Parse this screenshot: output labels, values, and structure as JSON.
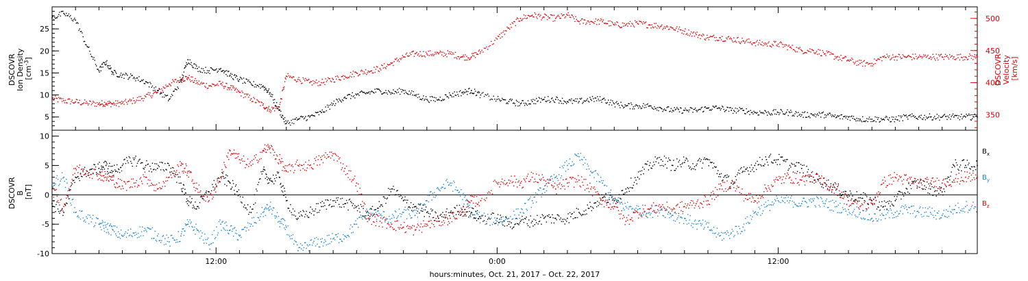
{
  "figure": {
    "xlabel": "hours:minutes, Oct. 21, 2017 – Oct. 22, 2017",
    "x_tick_labels": [
      "12:00",
      "0:00",
      "12:00"
    ],
    "colors": {
      "black": "#000000",
      "red": "#e00000",
      "blue": "#1a86d6"
    }
  },
  "chart_data": [
    {
      "type": "scatter",
      "panel": "top",
      "x_unit": "hours since 2017-10-21 00:00",
      "xlim": [
        5.0,
        44.5
      ],
      "left_axis": {
        "label_lines": [
          "DSCOVR",
          "Ion Density",
          "[cm^-3]"
        ],
        "label_sup": "-3",
        "ylim": [
          2,
          30
        ],
        "ticks": [
          5,
          10,
          15,
          20,
          25
        ]
      },
      "right_axis": {
        "label_lines": [
          "DSCOVR",
          "Velocity",
          "[km/s]"
        ],
        "ylim": [
          326,
          518
        ],
        "ticks": [
          350,
          400,
          450,
          500
        ],
        "color": "#e00000"
      },
      "series": [
        {
          "axis": "left",
          "color": "#000000",
          "x": [
            5.0,
            5.5,
            6.0,
            6.5,
            7.0,
            7.3,
            7.6,
            8.0,
            8.5,
            9.0,
            9.5,
            10.0,
            10.5,
            10.8,
            11.2,
            11.7,
            12.2,
            12.6,
            13.0,
            13.5,
            14.0,
            14.3,
            14.7,
            15.0,
            15.5,
            16.0,
            16.5,
            17.0,
            17.5,
            18.0,
            18.5,
            19.0,
            19.5,
            20.0,
            20.5,
            21.0,
            21.5,
            22.0,
            22.5,
            22.9,
            23.3,
            24.0,
            24.5,
            25.0,
            25.5,
            26.0,
            26.5,
            27.0,
            27.5,
            28.0,
            28.5,
            29.0,
            29.5,
            30.0,
            30.5,
            31.0,
            31.5,
            32.0,
            32.5,
            33.0,
            33.5,
            34.0,
            34.5,
            35.0,
            35.5,
            36.0,
            36.5,
            37.0,
            37.5,
            38.0,
            38.5,
            39.0,
            39.5,
            40.0,
            40.5,
            41.0,
            41.5,
            42.0,
            42.5,
            43.0,
            43.5,
            44.0,
            44.5
          ],
          "y": [
            27.5,
            28.5,
            27.0,
            21.0,
            15.5,
            17.5,
            15.0,
            14.5,
            14.0,
            13.0,
            11.0,
            9.0,
            13.0,
            18.0,
            16.0,
            15.5,
            16.0,
            14.5,
            13.5,
            12.5,
            12.0,
            10.5,
            6.5,
            3.5,
            4.5,
            5.0,
            6.0,
            8.0,
            9.5,
            10.0,
            10.5,
            11.0,
            10.5,
            11.0,
            10.0,
            9.0,
            9.0,
            10.0,
            10.5,
            11.0,
            10.0,
            9.0,
            8.5,
            8.0,
            8.5,
            9.0,
            9.0,
            8.5,
            8.5,
            9.0,
            9.0,
            8.0,
            7.5,
            7.5,
            7.5,
            7.0,
            6.5,
            6.5,
            6.5,
            7.0,
            7.0,
            6.5,
            6.5,
            6.0,
            6.0,
            6.0,
            6.0,
            5.5,
            5.5,
            5.5,
            5.0,
            5.0,
            4.5,
            4.5,
            4.5,
            4.5,
            5.0,
            5.0,
            5.0,
            5.0,
            5.0,
            5.0,
            5.0
          ]
        },
        {
          "axis": "right",
          "color": "#e00000",
          "x": [
            5.0,
            5.5,
            6.0,
            6.5,
            7.0,
            7.3,
            7.6,
            8.0,
            8.5,
            9.0,
            9.5,
            10.0,
            10.5,
            10.8,
            11.2,
            11.7,
            12.2,
            12.6,
            13.0,
            13.5,
            14.0,
            14.3,
            14.7,
            15.0,
            15.5,
            16.0,
            16.5,
            17.0,
            17.5,
            18.0,
            18.5,
            19.0,
            19.5,
            20.0,
            20.5,
            21.0,
            21.5,
            22.0,
            22.5,
            22.9,
            23.3,
            24.0,
            24.5,
            25.0,
            25.5,
            26.0,
            26.5,
            27.0,
            27.5,
            28.0,
            28.5,
            29.0,
            29.5,
            30.0,
            30.5,
            31.0,
            31.5,
            32.0,
            32.5,
            33.0,
            33.5,
            34.0,
            34.5,
            35.0,
            35.5,
            36.0,
            36.5,
            37.0,
            37.5,
            38.0,
            38.5,
            39.0,
            39.5,
            40.0,
            40.5,
            41.0,
            41.5,
            42.0,
            42.5,
            43.0,
            43.5,
            44.0,
            44.5
          ],
          "y": [
            375,
            372,
            370,
            368,
            367,
            368,
            367,
            368,
            372,
            378,
            385,
            398,
            405,
            408,
            400,
            395,
            398,
            392,
            385,
            375,
            365,
            358,
            362,
            410,
            405,
            400,
            400,
            405,
            410,
            415,
            418,
            422,
            430,
            440,
            445,
            445,
            445,
            445,
            440,
            440,
            448,
            468,
            485,
            500,
            505,
            502,
            500,
            505,
            495,
            495,
            495,
            490,
            490,
            492,
            490,
            488,
            485,
            480,
            475,
            470,
            470,
            468,
            465,
            462,
            460,
            460,
            455,
            450,
            450,
            445,
            440,
            435,
            430,
            430,
            440,
            440,
            440,
            440,
            440,
            440,
            440,
            440,
            440
          ]
        }
      ]
    },
    {
      "type": "scatter",
      "panel": "bottom",
      "x_unit": "hours since 2017-10-21 00:00",
      "xlim": [
        5.0,
        44.5
      ],
      "left_axis": {
        "label_lines": [
          "DSCOVR",
          "B",
          "[nT]"
        ],
        "ylim": [
          -10,
          11
        ],
        "ticks": [
          -10,
          -5,
          0,
          5,
          10
        ]
      },
      "zero_line": true,
      "series": [
        {
          "name": "B_x",
          "color": "#000000",
          "x": [
            5.0,
            5.5,
            6.0,
            6.5,
            7.0,
            7.3,
            7.6,
            8.0,
            8.5,
            9.0,
            9.5,
            10.0,
            10.5,
            10.8,
            11.2,
            11.7,
            12.2,
            12.6,
            13.0,
            13.5,
            14.0,
            14.3,
            14.7,
            15.0,
            15.5,
            16.0,
            16.5,
            17.0,
            17.5,
            18.0,
            18.5,
            19.0,
            19.5,
            20.0,
            20.5,
            21.0,
            21.5,
            22.0,
            22.5,
            22.9,
            23.3,
            24.0,
            24.5,
            25.0,
            25.5,
            26.0,
            26.5,
            27.0,
            27.5,
            28.0,
            28.5,
            29.0,
            29.5,
            30.0,
            30.5,
            31.0,
            31.5,
            32.0,
            32.5,
            33.0,
            33.5,
            34.0,
            34.5,
            35.0,
            35.5,
            36.0,
            36.5,
            37.0,
            37.5,
            38.0,
            38.5,
            39.0,
            39.5,
            40.0,
            40.5,
            41.0,
            41.5,
            42.0,
            42.5,
            43.0,
            43.5,
            44.0,
            44.5
          ],
          "y": [
            -1.5,
            -3.0,
            3.0,
            4.0,
            4.5,
            5.0,
            4.0,
            5.0,
            6.0,
            5.0,
            4.5,
            5.0,
            2.0,
            -1.0,
            -2.0,
            0.5,
            3.0,
            2.0,
            0.0,
            -3.0,
            4.0,
            2.5,
            3.0,
            -1.0,
            -4.0,
            -3.0,
            -2.0,
            -1.0,
            -1.5,
            -2.0,
            -3.5,
            -2.0,
            1.0,
            -1.0,
            -2.0,
            -3.0,
            -4.0,
            -3.0,
            -2.5,
            -3.0,
            -4.0,
            -4.0,
            -5.0,
            -4.5,
            -4.5,
            -4.0,
            -4.0,
            -4.0,
            -3.0,
            -2.0,
            -0.5,
            -1.0,
            1.0,
            3.0,
            5.0,
            6.0,
            5.0,
            5.5,
            5.0,
            6.0,
            3.5,
            2.0,
            4.0,
            5.0,
            6.0,
            6.0,
            5.0,
            4.5,
            3.0,
            2.0,
            1.0,
            0.0,
            -0.5,
            -1.0,
            -2.0,
            -1.0,
            1.0,
            2.0,
            1.0,
            0.5,
            5.0,
            5.0,
            5.0
          ]
        },
        {
          "name": "B_y",
          "color": "#1a86d6",
          "x": [
            5.0,
            5.5,
            6.0,
            6.5,
            7.0,
            7.3,
            7.6,
            8.0,
            8.5,
            9.0,
            9.5,
            10.0,
            10.5,
            10.8,
            11.2,
            11.7,
            12.2,
            12.6,
            13.0,
            13.5,
            14.0,
            14.3,
            14.7,
            15.0,
            15.5,
            16.0,
            16.5,
            17.0,
            17.5,
            18.0,
            18.5,
            19.0,
            19.5,
            20.0,
            20.5,
            21.0,
            21.5,
            22.0,
            22.5,
            22.9,
            23.3,
            24.0,
            24.5,
            25.0,
            25.5,
            26.0,
            26.5,
            27.0,
            27.5,
            28.0,
            28.5,
            29.0,
            29.5,
            30.0,
            30.5,
            31.0,
            31.5,
            32.0,
            32.5,
            33.0,
            33.5,
            34.0,
            34.5,
            35.0,
            35.5,
            36.0,
            36.5,
            37.0,
            37.5,
            38.0,
            38.5,
            39.0,
            39.5,
            40.0,
            40.5,
            41.0,
            41.5,
            42.0,
            42.5,
            43.0,
            43.5,
            44.0,
            44.5
          ],
          "y": [
            2.0,
            3.0,
            -3.0,
            -4.0,
            -5.0,
            -5.5,
            -6.0,
            -7.0,
            -6.5,
            -6.0,
            -7.0,
            -8.0,
            -7.0,
            -5.0,
            -6.0,
            -8.5,
            -5.0,
            -6.0,
            -7.0,
            -5.0,
            -3.0,
            -2.0,
            -4.5,
            -5.5,
            -9.5,
            -8.5,
            -8.0,
            -7.5,
            -7.0,
            -5.0,
            -3.0,
            -3.5,
            -4.0,
            -3.0,
            -3.5,
            -1.0,
            1.0,
            2.0,
            0.0,
            -3.0,
            -4.0,
            -4.5,
            -4.0,
            -3.0,
            -1.0,
            1.0,
            3.0,
            5.0,
            6.5,
            4.0,
            2.0,
            -1.0,
            -2.0,
            -2.5,
            -3.0,
            -2.5,
            -3.5,
            -4.0,
            -5.0,
            -5.5,
            -7.0,
            -6.5,
            -5.5,
            -3.0,
            -2.0,
            -1.0,
            -1.0,
            -1.5,
            -1.0,
            -1.5,
            -2.0,
            -2.5,
            -3.0,
            -4.0,
            -3.5,
            -3.0,
            -2.5,
            -3.0,
            -3.0,
            -3.5,
            -2.5,
            -2.0,
            -2.0
          ]
        },
        {
          "name": "B_z",
          "color": "#e00000",
          "x": [
            5.0,
            5.5,
            6.0,
            6.5,
            7.0,
            7.3,
            7.6,
            8.0,
            8.5,
            9.0,
            9.5,
            10.0,
            10.5,
            10.8,
            11.2,
            11.7,
            12.2,
            12.6,
            13.0,
            13.5,
            14.0,
            14.3,
            14.7,
            15.0,
            15.5,
            16.0,
            16.5,
            17.0,
            17.5,
            18.0,
            18.5,
            19.0,
            19.5,
            20.0,
            20.5,
            21.0,
            21.5,
            22.0,
            22.5,
            22.9,
            23.3,
            24.0,
            24.5,
            25.0,
            25.5,
            26.0,
            26.5,
            27.0,
            27.5,
            28.0,
            28.5,
            29.0,
            29.5,
            30.0,
            30.5,
            31.0,
            31.5,
            32.0,
            32.5,
            33.0,
            33.5,
            34.0,
            34.5,
            35.0,
            35.5,
            36.0,
            36.5,
            37.0,
            37.5,
            38.0,
            38.5,
            39.0,
            39.5,
            40.0,
            40.5,
            41.0,
            41.5,
            42.0,
            42.5,
            43.0,
            43.5,
            44.0,
            44.5
          ],
          "y": [
            1.0,
            -2.0,
            4.5,
            4.0,
            3.5,
            3.0,
            2.5,
            1.5,
            2.0,
            3.0,
            1.0,
            3.0,
            5.0,
            4.0,
            1.0,
            -1.0,
            3.0,
            7.5,
            6.0,
            5.0,
            7.5,
            8.0,
            6.0,
            4.0,
            5.0,
            5.0,
            6.0,
            7.0,
            4.5,
            2.0,
            -4.0,
            -4.5,
            -5.0,
            -5.5,
            -6.0,
            -5.0,
            -4.5,
            -4.0,
            -3.0,
            -1.0,
            -1.0,
            2.0,
            2.5,
            2.0,
            3.0,
            2.5,
            1.0,
            2.0,
            2.5,
            1.0,
            -1.0,
            -2.0,
            -4.5,
            -3.0,
            -2.5,
            -2.0,
            -2.5,
            -2.0,
            -1.5,
            -1.0,
            1.0,
            2.0,
            0.0,
            -1.0,
            1.0,
            2.5,
            3.0,
            2.5,
            3.0,
            2.0,
            1.0,
            -1.0,
            -2.0,
            -1.5,
            2.0,
            3.0,
            2.5,
            2.0,
            2.0,
            2.0,
            2.5,
            3.0,
            3.0
          ]
        }
      ]
    }
  ]
}
